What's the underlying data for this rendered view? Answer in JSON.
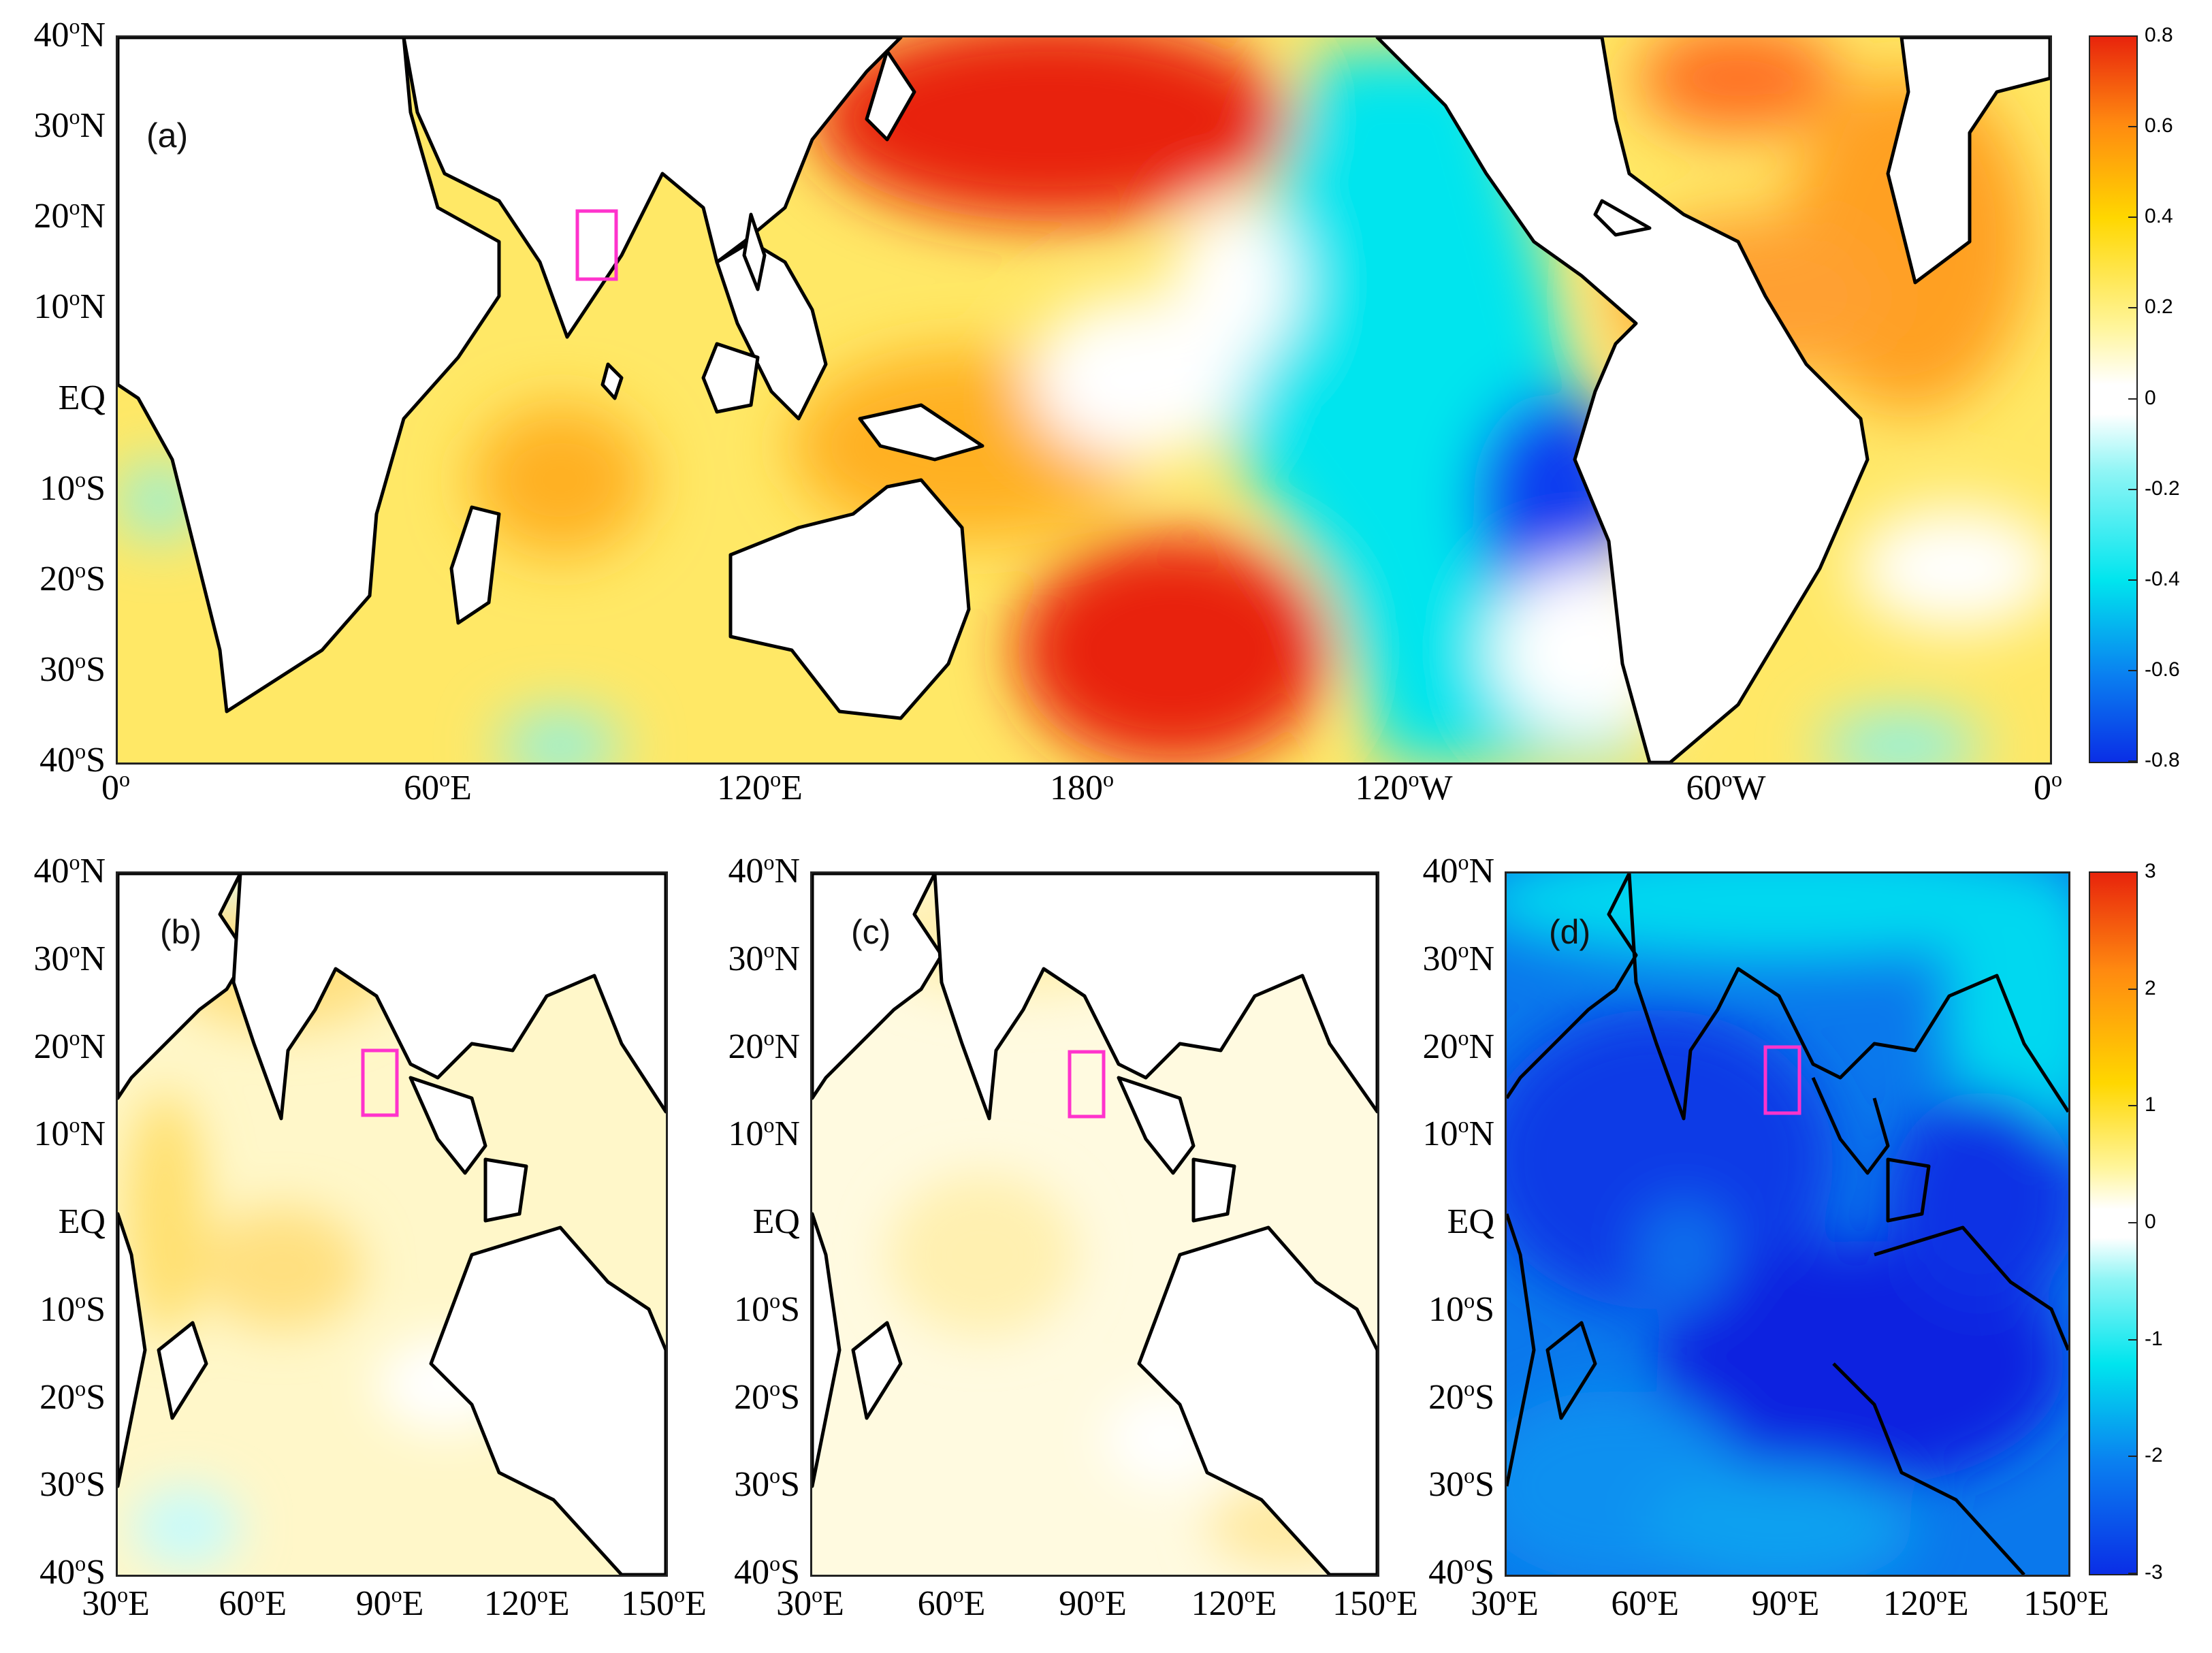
{
  "panels": {
    "a": {
      "label": "(a)"
    },
    "b": {
      "label": "(b)"
    },
    "c": {
      "label": "(c)"
    },
    "d": {
      "label": "(d)"
    }
  },
  "axes": {
    "top": {
      "y_ticks": [
        "40",
        "30",
        "20",
        "10",
        "EQ",
        "10",
        "20",
        "30",
        "40"
      ],
      "y_suffix": [
        "N",
        "N",
        "N",
        "N",
        "",
        "S",
        "S",
        "S",
        "S"
      ],
      "x_ticks": [
        "0",
        "60",
        "120",
        "180",
        "120",
        "60",
        "0"
      ],
      "x_suffix": [
        "",
        "E",
        "E",
        "",
        "W",
        "W",
        ""
      ]
    },
    "bottom": {
      "y_ticks": [
        "40",
        "30",
        "20",
        "10",
        "EQ",
        "10",
        "20",
        "30",
        "40"
      ],
      "y_suffix": [
        "N",
        "N",
        "N",
        "N",
        "",
        "S",
        "S",
        "S",
        "S"
      ],
      "x_ticks": [
        "30",
        "60",
        "90",
        "120",
        "150"
      ],
      "x_suffix": [
        "E",
        "E",
        "E",
        "E",
        "E"
      ]
    },
    "degree_symbol": "o"
  },
  "colorbars": {
    "top": {
      "ticks": [
        "0.8",
        "0.6",
        "0.4",
        "0.2",
        "0",
        "-0.2",
        "-0.4",
        "-0.6",
        "-0.8"
      ],
      "range": [
        -0.8,
        0.8
      ]
    },
    "bottom": {
      "ticks": [
        "3",
        "2",
        "1",
        "0",
        "-1",
        "-2",
        "-3"
      ],
      "range": [
        -3,
        3
      ]
    }
  },
  "colors": {
    "strong_pos": "#e8240c",
    "pos": "#ffd700",
    "weak_pos": "#fff6b0",
    "neutral": "#ffffff",
    "weak_neg": "#7ff3f3",
    "neg": "#00e5ee",
    "strong_neg": "#0a3ef0",
    "box": "#ff33cc"
  }
}
